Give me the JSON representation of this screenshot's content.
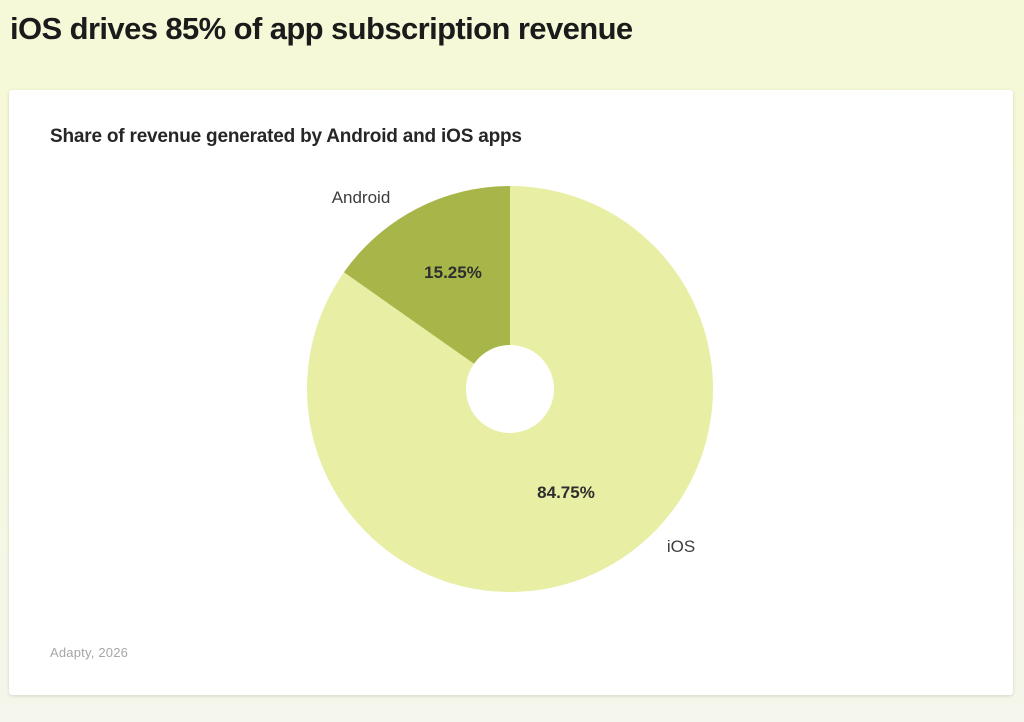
{
  "page": {
    "headline": "iOS drives 85% of app subscription revenue",
    "source": "Adapty, 2026"
  },
  "card": {
    "title": "Share of revenue generated by Android and iOS apps"
  },
  "chart_data": {
    "type": "pie",
    "subtype": "donut",
    "title": "Share of revenue generated by Android and iOS apps",
    "start_angle": "top",
    "direction": "clockwise",
    "slices": [
      {
        "label": "iOS",
        "value": 84.75,
        "value_label": "84.75%",
        "color": "#e9eea5"
      },
      {
        "label": "Android",
        "value": 15.25,
        "value_label": "15.25%",
        "color": "#a8b649"
      }
    ],
    "hole_color": "#ffffff",
    "legend": "none",
    "labels_position": "names outside, percentages inside slices",
    "source": "Adapty, 2026"
  }
}
